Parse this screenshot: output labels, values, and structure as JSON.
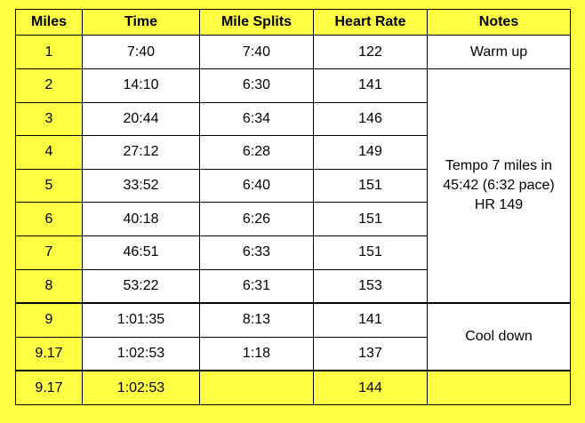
{
  "table": {
    "headers": [
      "Miles",
      "Time",
      "Mile Splits",
      "Heart Rate",
      "Notes"
    ],
    "rows": [
      {
        "miles": "1",
        "time": "7:40",
        "split": "7:40",
        "hr": "122"
      },
      {
        "miles": "2",
        "time": "14:10",
        "split": "6:30",
        "hr": "141"
      },
      {
        "miles": "3",
        "time": "20:44",
        "split": "6:34",
        "hr": "146"
      },
      {
        "miles": "4",
        "time": "27:12",
        "split": "6:28",
        "hr": "149"
      },
      {
        "miles": "5",
        "time": "33:52",
        "split": "6:40",
        "hr": "151"
      },
      {
        "miles": "6",
        "time": "40:18",
        "split": "6:26",
        "hr": "151"
      },
      {
        "miles": "7",
        "time": "46:51",
        "split": "6:33",
        "hr": "151"
      },
      {
        "miles": "8",
        "time": "53:22",
        "split": "6:31",
        "hr": "153"
      },
      {
        "miles": "9",
        "time": "1:01:35",
        "split": "8:13",
        "hr": "141"
      },
      {
        "miles": "9.17",
        "time": "1:02:53",
        "split": "1:18",
        "hr": "137"
      }
    ],
    "notes": {
      "warmup": "Warm up",
      "tempo_line1": "Tempo 7 miles in",
      "tempo_line2": "45:42 (6:32 pace)",
      "tempo_line3": "HR 149",
      "cooldown": "Cool down"
    },
    "total": {
      "miles": "9.17",
      "time": "1:02:53",
      "split": "",
      "hr": "144",
      "note": ""
    }
  }
}
